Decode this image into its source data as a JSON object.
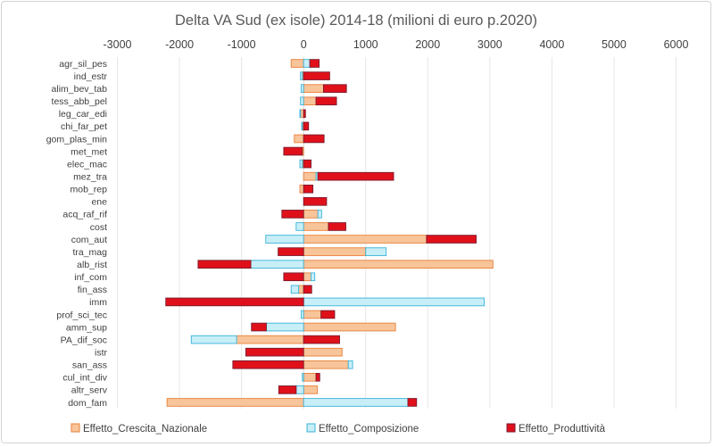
{
  "chart_data": {
    "type": "bar",
    "orientation": "horizontal",
    "stacked": true,
    "title": "Delta VA Sud (ex isole) 2014-18 (milioni di euro p.2020)",
    "xlabel": "",
    "ylabel": "",
    "xlim": [
      -3000,
      6000
    ],
    "xticks": [
      "-3000",
      "-2000",
      "-1000",
      "0",
      "1000",
      "2000",
      "3000",
      "4000",
      "5000",
      "6000"
    ],
    "grid": true,
    "legend_position": "bottom",
    "categories": [
      "agr_sil_pes",
      "ind_estr",
      "alim_bev_tab",
      "tess_abb_pel",
      "leg_car_edi",
      "chi_far_pet",
      "gom_plas_min",
      "met_met",
      "elec_mac",
      "mez_tra",
      "mob_rep",
      "ene",
      "acq_raf_rif",
      "cost",
      "com_aut",
      "tra_mag",
      "alb_rist",
      "inf_com",
      "fin_ass",
      "imm",
      "prof_sci_tec",
      "amm_sup",
      "PA_dif_soc",
      "istr",
      "san_ass",
      "cul_int_div",
      "altr_serv",
      "dom_fam"
    ],
    "series": [
      {
        "name": "Effetto_Crescita_Nazionale",
        "color": "#F8C49A",
        "border": "#E8813A",
        "values": [
          -200,
          -20,
          320,
          200,
          -50,
          -20,
          -150,
          -20,
          -20,
          200,
          -60,
          0,
          230,
          400,
          1980,
          1000,
          3050,
          120,
          -80,
          0,
          280,
          1480,
          -1080,
          620,
          720,
          200,
          220,
          -2200
        ]
      },
      {
        "name": "Effetto_Composizione",
        "color": "#C8EEF8",
        "border": "#39B4D9",
        "values": [
          100,
          -30,
          -40,
          -50,
          -10,
          -10,
          0,
          0,
          -40,
          30,
          0,
          0,
          60,
          -120,
          -610,
          330,
          -850,
          60,
          -120,
          2910,
          -40,
          -600,
          -730,
          0,
          70,
          -20,
          -120,
          1680
        ]
      },
      {
        "name": "Effetto_Produttività",
        "color": "#E0101A",
        "border": "#7A1A2E",
        "values": [
          150,
          420,
          370,
          330,
          30,
          80,
          330,
          -300,
          120,
          1220,
          150,
          370,
          -350,
          280,
          800,
          -410,
          -850,
          -320,
          130,
          -2220,
          220,
          -240,
          580,
          -930,
          -1140,
          60,
          -280,
          140
        ]
      }
    ]
  }
}
